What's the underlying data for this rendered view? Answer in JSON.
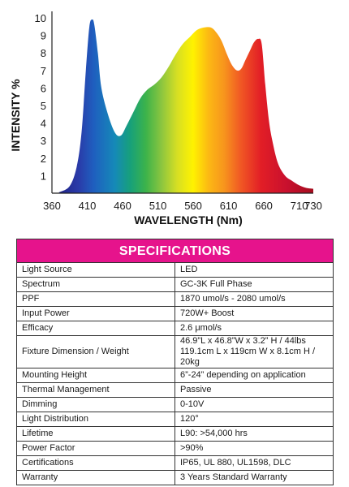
{
  "chart_data": {
    "type": "area",
    "title": "",
    "xlabel": "WAVELENGTH (Nm)",
    "ylabel": "INTENSITY %",
    "xlim": [
      360,
      730
    ],
    "ylim": [
      0,
      10
    ],
    "x_ticks": [
      360,
      410,
      460,
      510,
      560,
      610,
      660,
      710,
      730
    ],
    "y_ticks": [
      1,
      2,
      3,
      4,
      5,
      6,
      7,
      8,
      9,
      10
    ],
    "grid": false,
    "fill": "rainbow-by-wavelength",
    "series": [
      {
        "x": [
          370,
          385,
          395,
          402,
          408,
          413,
          417,
          420,
          425,
          430,
          440,
          450,
          458,
          465,
          475,
          485,
          495,
          505,
          515,
          525,
          535,
          545,
          555,
          565,
          575,
          585,
          592,
          600,
          608,
          615,
          622,
          628,
          634,
          640,
          646,
          652,
          657,
          662,
          667,
          672,
          680,
          690,
          700,
          710,
          720,
          730
        ],
        "values": [
          0.05,
          0.4,
          1.5,
          3.5,
          7.0,
          9.5,
          9.9,
          9.6,
          8.0,
          6.0,
          4.4,
          3.4,
          3.3,
          3.8,
          4.6,
          5.4,
          5.9,
          6.2,
          6.6,
          7.2,
          7.9,
          8.5,
          8.9,
          9.3,
          9.45,
          9.45,
          9.2,
          8.7,
          7.9,
          7.3,
          7.0,
          7.1,
          7.6,
          8.1,
          8.6,
          8.8,
          8.5,
          6.2,
          4.2,
          3.0,
          1.7,
          1.0,
          0.7,
          0.45,
          0.3,
          0.25
        ]
      }
    ]
  },
  "specs": {
    "title": "SPECIFICATIONS",
    "rows": [
      {
        "label": "Light Source",
        "value": "LED"
      },
      {
        "label": "Spectrum",
        "value": "GC-3K Full Phase"
      },
      {
        "label": "PPF",
        "value": "1870 umol/s - 2080 umol/s"
      },
      {
        "label": "Input Power",
        "value": "720W+ Boost"
      },
      {
        "label": "Efficacy",
        "value": "2.6 μmol/s"
      },
      {
        "label": "Fixture Dimension / Weight",
        "value": "46.9”L x 46.8”W x 3.2” H / 44lbs",
        "value2": "119.1cm L x 119cm W x 8.1cm H / 20kg"
      },
      {
        "label": "Mounting Height",
        "value": "6”-24” depending on application"
      },
      {
        "label": "Thermal Management",
        "value": "Passive"
      },
      {
        "label": "Dimming",
        "value": "0-10V"
      },
      {
        "label": "Light Distribution",
        "value": "120°"
      },
      {
        "label": "Lifetime",
        "value": "L90: >54,000 hrs"
      },
      {
        "label": "Power Factor",
        "value": ">90%"
      },
      {
        "label": "Certifications",
        "value": "IP65, UL 880, UL1598, DLC"
      },
      {
        "label": "Warranty",
        "value": "3 Years Standard Warranty"
      }
    ]
  }
}
